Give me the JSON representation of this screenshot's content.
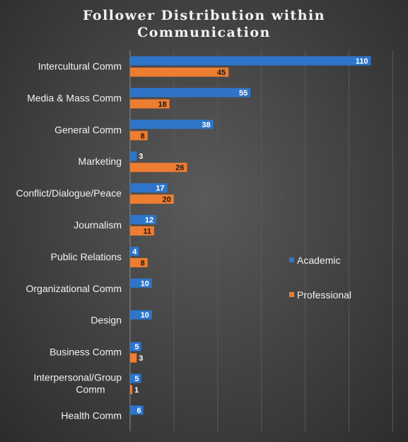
{
  "chart_data": {
    "type": "bar",
    "orientation": "horizontal",
    "title": "Follower Distribution within Communication",
    "categories": [
      "Intercultural Comm",
      "Media & Mass Comm",
      "General Comm",
      "Marketing",
      "Conflict/Dialogue/Peace",
      "Journalism",
      "Public Relations",
      "Organizational Comm",
      "Design",
      "Business Comm",
      "Interpersonal/Group Comm",
      "Health Comm"
    ],
    "series": [
      {
        "name": "Academic",
        "color": "#2e75c9",
        "values": [
          110,
          55,
          38,
          3,
          17,
          12,
          4,
          10,
          10,
          5,
          5,
          6
        ]
      },
      {
        "name": "Professional",
        "color": "#ed7d31",
        "values": [
          45,
          18,
          8,
          26,
          20,
          11,
          8,
          null,
          null,
          3,
          1,
          null
        ]
      }
    ],
    "xlim": [
      0,
      120
    ],
    "grid": true,
    "legend_position": "right"
  }
}
